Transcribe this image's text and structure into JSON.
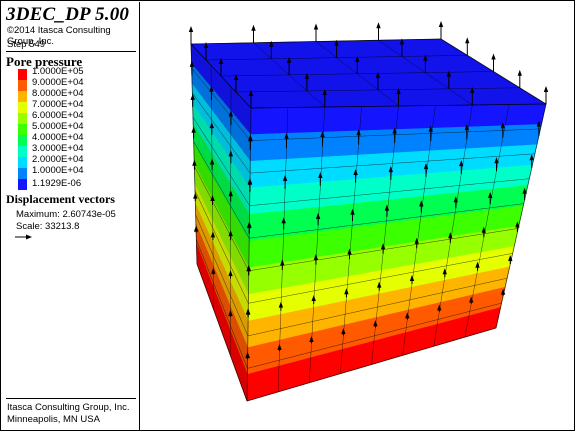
{
  "header": {
    "app_title": "3DEC_DP 5.00",
    "copyright": "©2014 Itasca Consulting Group, Inc.",
    "step": "Step 549"
  },
  "pore_pressure": {
    "title": "Pore pressure",
    "levels": [
      {
        "label": "1.0000E+05",
        "color": "#ff0000"
      },
      {
        "label": "9.0000E+04",
        "color": "#ff5a00"
      },
      {
        "label": "8.0000E+04",
        "color": "#ffb400"
      },
      {
        "label": "7.0000E+04",
        "color": "#e6ff00"
      },
      {
        "label": "6.0000E+04",
        "color": "#96ff00"
      },
      {
        "label": "5.0000E+04",
        "color": "#3cff00"
      },
      {
        "label": "4.0000E+04",
        "color": "#00ff50"
      },
      {
        "label": "3.0000E+04",
        "color": "#00ffc8"
      },
      {
        "label": "2.0000E+04",
        "color": "#00dcff"
      },
      {
        "label": "1.0000E+04",
        "color": "#0082ff"
      },
      {
        "label": "1.1929E-06",
        "color": "#1414ff"
      }
    ]
  },
  "displacement": {
    "title": "Displacement vectors",
    "maximum": "Maximum: 2.60743e-05",
    "scale": "Scale: 33213.8"
  },
  "footer": {
    "line1": "Itasca Consulting Group, Inc.",
    "line2": "Minneapolis, MN  USA"
  }
}
